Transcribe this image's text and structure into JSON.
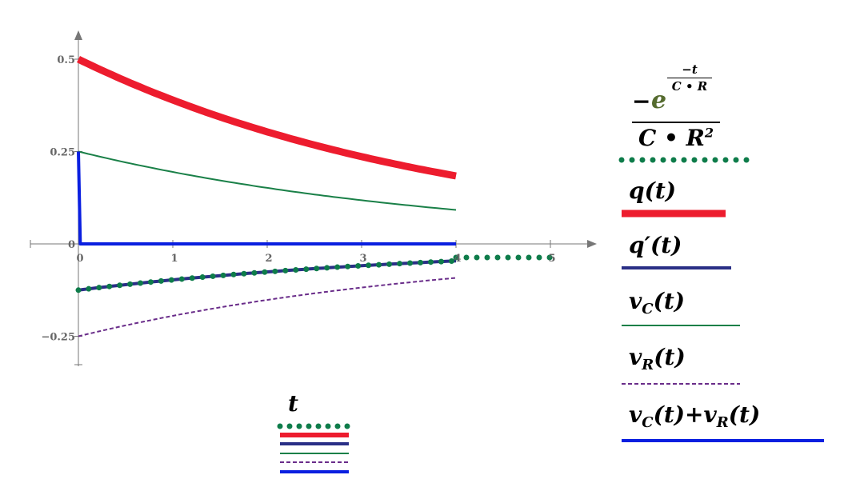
{
  "chart_data": {
    "type": "line",
    "x_variable": "t",
    "xlim": [
      0,
      5
    ],
    "ylim": [
      -0.25,
      0.5
    ],
    "x_ticks": [
      "0",
      "1",
      "2",
      "3",
      "4",
      "5"
    ],
    "y_ticks": [
      "0.5",
      "0.25",
      "0",
      "−0.25"
    ],
    "grid": false,
    "legend_position": "right",
    "series": [
      {
        "name": "-e^(-t/(C·R))/(C·R^2)",
        "style": "dotted",
        "color": "#0e7c4a",
        "x": [
          0,
          0.5,
          1,
          1.5,
          2,
          2.5,
          3,
          3.5,
          4
        ],
        "y": [
          -0.125,
          -0.11,
          -0.098,
          -0.086,
          -0.076,
          -0.067,
          -0.059,
          -0.052,
          -0.046
        ]
      },
      {
        "name": "q(t)",
        "style": "solid-thick",
        "color": "#ed1c2e",
        "x": [
          0,
          0.5,
          1,
          1.5,
          2,
          2.5,
          3,
          3.5,
          4
        ],
        "y": [
          0.5,
          0.441,
          0.389,
          0.344,
          0.303,
          0.268,
          0.236,
          0.208,
          0.184
        ]
      },
      {
        "name": "q′(t)",
        "style": "solid",
        "color": "#2a2f86",
        "x": [
          0,
          0.5,
          1,
          1.5,
          2,
          2.5,
          3,
          3.5,
          4
        ],
        "y": [
          -0.125,
          -0.11,
          -0.098,
          -0.086,
          -0.076,
          -0.067,
          -0.059,
          -0.052,
          -0.046
        ]
      },
      {
        "name": "v_C(t)",
        "style": "solid-thin",
        "color": "#1a8048",
        "x": [
          0,
          0.5,
          1,
          1.5,
          2,
          2.5,
          3,
          3.5,
          4
        ],
        "y": [
          0.25,
          0.221,
          0.195,
          0.172,
          0.152,
          0.134,
          0.118,
          0.104,
          0.092
        ]
      },
      {
        "name": "v_R(t)",
        "style": "dashed",
        "color": "#6a2d8a",
        "x": [
          0,
          0.5,
          1,
          1.5,
          2,
          2.5,
          3,
          3.5,
          4
        ],
        "y": [
          -0.25,
          -0.221,
          -0.195,
          -0.172,
          -0.152,
          -0.134,
          -0.118,
          -0.104,
          -0.092
        ]
      },
      {
        "name": "v_C(t)+v_R(t)",
        "style": "solid",
        "color": "#0a1fe0",
        "x": [
          0,
          0.02,
          4
        ],
        "y": [
          0.25,
          0,
          0
        ]
      }
    ],
    "legend": {
      "entry1": {
        "numerator_sign": "−",
        "base": "e",
        "exp_sign": "−",
        "exp_var": "t",
        "exp_den": "C • R",
        "den": "C • R",
        "den_exp": "2"
      },
      "entry2": {
        "fn": "q",
        "arg": "t"
      },
      "entry3": {
        "fn": "q′",
        "arg": "t"
      },
      "entry4": {
        "fn": "v",
        "sub": "C",
        "arg": "t"
      },
      "entry5": {
        "fn": "v",
        "sub": "R",
        "arg": "t"
      },
      "entry6": {
        "fn1": "v",
        "sub1": "C",
        "plus": "+",
        "fn2": "v",
        "sub2": "R",
        "arg": "t"
      }
    }
  }
}
